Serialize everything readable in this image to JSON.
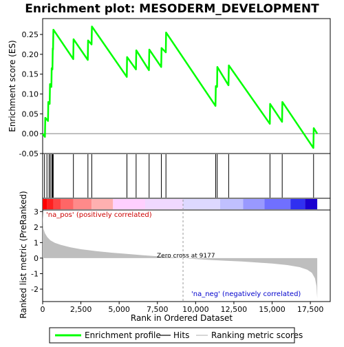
{
  "chart_data": [
    {
      "type": "line",
      "title": "Enrichment plot: MESODERM_DEVELOPMENT",
      "ylabel": "Enrichment score (ES)",
      "ylim": [
        -0.05,
        0.29
      ],
      "yticks": [
        -0.05,
        0.0,
        0.05,
        0.1,
        0.15,
        0.2,
        0.25
      ],
      "ytick_labels": [
        "-0.05",
        "0.00",
        "0.05",
        "0.10",
        "0.15",
        "0.20",
        "0.25"
      ],
      "xlim": [
        0,
        18800
      ],
      "color": "#00ff00",
      "series": [
        {
          "name": "Enrichment profile",
          "x": [
            0,
            150,
            170,
            350,
            370,
            460,
            480,
            570,
            590,
            640,
            660,
            680,
            700,
            2000,
            2020,
            2950,
            2970,
            3200,
            3220,
            5500,
            5520,
            6100,
            6120,
            6950,
            6970,
            7750,
            7770,
            8050,
            8070,
            11300,
            11320,
            11400,
            11420,
            12150,
            12170,
            14850,
            14870,
            15650,
            15670,
            17700,
            17720,
            17950
          ],
          "y": [
            0.0,
            -0.008,
            0.04,
            0.032,
            0.08,
            0.075,
            0.125,
            0.118,
            0.165,
            0.162,
            0.215,
            0.212,
            0.262,
            0.188,
            0.238,
            0.186,
            0.235,
            0.225,
            0.27,
            0.143,
            0.193,
            0.162,
            0.21,
            0.16,
            0.212,
            0.168,
            0.216,
            0.205,
            0.255,
            0.07,
            0.12,
            0.118,
            0.168,
            0.122,
            0.172,
            0.025,
            0.075,
            0.03,
            0.08,
            -0.036,
            0.014,
            0.0
          ]
        }
      ]
    },
    {
      "type": "scatter",
      "series_name": "Hits",
      "color": "#000000",
      "x": [
        120,
        280,
        420,
        500,
        600,
        650,
        690,
        2010,
        2960,
        3210,
        5510,
        6110,
        6960,
        7760,
        8060,
        11310,
        11410,
        12160,
        14860,
        15660,
        17710
      ]
    },
    {
      "type": "area",
      "xlabel": "Rank in Ordered Dataset",
      "ylabel": "Ranked list metric (PreRanked)",
      "ylim": [
        -2.8,
        3.1
      ],
      "yticks": [
        -2,
        -1,
        0,
        1,
        2,
        3
      ],
      "ytick_labels": [
        "-2",
        "-1",
        "0",
        "1",
        "2",
        "3"
      ],
      "xticks": [
        0,
        2500,
        5000,
        7500,
        10000,
        12500,
        15000,
        17500
      ],
      "xtick_labels": [
        "0",
        "2,500",
        "5,000",
        "7,500",
        "10,000",
        "12,500",
        "15,000",
        "17,500"
      ],
      "color": "#bebebe",
      "x": [
        0,
        50,
        150,
        300,
        500,
        800,
        1200,
        1800,
        2500,
        3500,
        4500,
        5500,
        6500,
        7500,
        8500,
        9177,
        10000,
        11000,
        12000,
        13000,
        14000,
        15000,
        16000,
        16800,
        17300,
        17600,
        17800,
        17900,
        17950
      ],
      "values": [
        3.0,
        1.9,
        1.6,
        1.35,
        1.15,
        0.98,
        0.85,
        0.7,
        0.57,
        0.45,
        0.35,
        0.27,
        0.19,
        0.12,
        0.05,
        0.0,
        -0.06,
        -0.12,
        -0.17,
        -0.22,
        -0.28,
        -0.35,
        -0.45,
        -0.58,
        -0.75,
        -0.95,
        -1.3,
        -1.8,
        -2.6
      ]
    }
  ],
  "annotations": {
    "pos": "'na_pos' (positively correlated)",
    "neg": "'na_neg' (negatively correlated)",
    "zero_cross": "Zero cross at 9177",
    "zero_cross_rank": 9177
  },
  "legend": [
    {
      "label": "Enrichment profile",
      "color": "#00ff00"
    },
    {
      "label": "Hits",
      "color": "#000000"
    },
    {
      "label": "Ranking metric scores",
      "color": "#bebebe"
    }
  ],
  "colorbar": [
    "#ff0000",
    "#ff2020",
    "#ff4444",
    "#ff6666",
    "#ff8a8a",
    "#ffb0b0",
    "#ffd0ff",
    "#f0d8ff",
    "#ddd8ff",
    "#c0c0ff",
    "#9999ff",
    "#7070ff",
    "#3030f0",
    "#1a00d0"
  ],
  "colorbar_breaks": [
    0,
    300,
    700,
    1200,
    2000,
    3200,
    4600,
    6700,
    9177,
    11600,
    13100,
    14500,
    16200,
    17150,
    17950
  ]
}
